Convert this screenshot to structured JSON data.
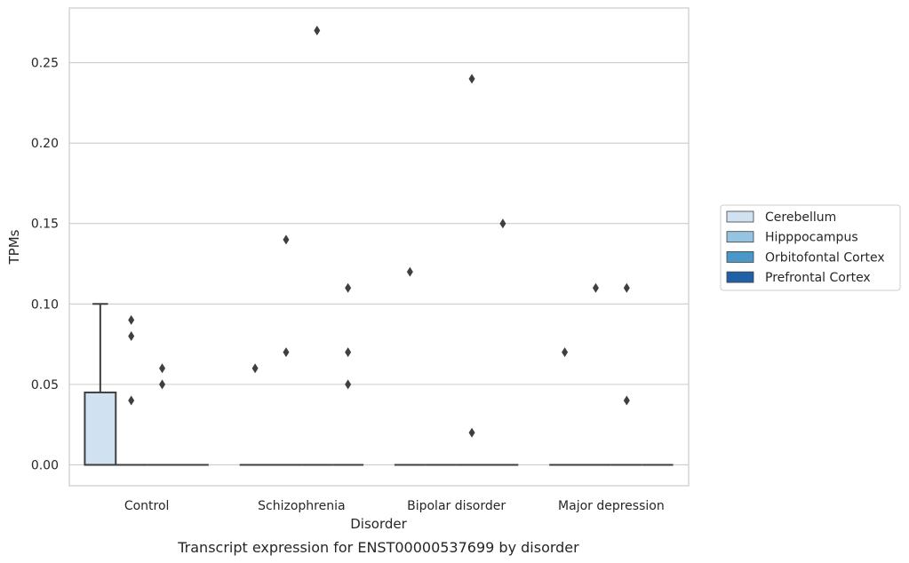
{
  "chart_data": {
    "type": "box",
    "caption": "Transcript expression for ENST00000537699 by disorder",
    "xlabel": "Disorder",
    "ylabel": "TPMs",
    "ylim": [
      -0.013,
      0.284
    ],
    "yticks": [
      0.0,
      0.05,
      0.1,
      0.15,
      0.2,
      0.25
    ],
    "ytick_labels": [
      "0.00",
      "0.05",
      "0.10",
      "0.15",
      "0.20",
      "0.25"
    ],
    "grid": "horizontal",
    "legend_placement": "right",
    "categories": [
      "Control",
      "Schizophrenia",
      "Bipolar disorder",
      "Major depression"
    ],
    "series": [
      {
        "name": "Cerebellum",
        "color": "#d0e1f2"
      },
      {
        "name": "Hipppocampus",
        "color": "#94c4df"
      },
      {
        "name": "Orbitofontal Cortex",
        "color": "#4a98c9"
      },
      {
        "name": "Prefrontal Cortex",
        "color": "#2060a7"
      }
    ],
    "boxes": [
      {
        "category": 0,
        "series": 0,
        "q1": 0.0,
        "median": 0.0,
        "q3": 0.045,
        "whisker_low": 0.0,
        "whisker_high": 0.1,
        "outliers": []
      },
      {
        "category": 0,
        "series": 1,
        "q1": 0.0,
        "median": 0.0,
        "q3": 0.0,
        "whisker_low": 0.0,
        "whisker_high": 0.0,
        "outliers": [
          0.04,
          0.08,
          0.09
        ]
      },
      {
        "category": 0,
        "series": 2,
        "q1": 0.0,
        "median": 0.0,
        "q3": 0.0,
        "whisker_low": 0.0,
        "whisker_high": 0.0,
        "outliers": [
          0.05,
          0.06
        ]
      },
      {
        "category": 0,
        "series": 3,
        "q1": 0.0,
        "median": 0.0,
        "q3": 0.0,
        "whisker_low": 0.0,
        "whisker_high": 0.0,
        "outliers": []
      },
      {
        "category": 1,
        "series": 0,
        "q1": 0.0,
        "median": 0.0,
        "q3": 0.0,
        "whisker_low": 0.0,
        "whisker_high": 0.0,
        "outliers": [
          0.06
        ]
      },
      {
        "category": 1,
        "series": 1,
        "q1": 0.0,
        "median": 0.0,
        "q3": 0.0,
        "whisker_low": 0.0,
        "whisker_high": 0.0,
        "outliers": [
          0.07,
          0.14
        ]
      },
      {
        "category": 1,
        "series": 2,
        "q1": 0.0,
        "median": 0.0,
        "q3": 0.0,
        "whisker_low": 0.0,
        "whisker_high": 0.0,
        "outliers": [
          0.27
        ]
      },
      {
        "category": 1,
        "series": 3,
        "q1": 0.0,
        "median": 0.0,
        "q3": 0.0,
        "whisker_low": 0.0,
        "whisker_high": 0.0,
        "outliers": [
          0.05,
          0.07,
          0.11
        ]
      },
      {
        "category": 2,
        "series": 0,
        "q1": 0.0,
        "median": 0.0,
        "q3": 0.0,
        "whisker_low": 0.0,
        "whisker_high": 0.0,
        "outliers": [
          0.12
        ]
      },
      {
        "category": 2,
        "series": 1,
        "q1": 0.0,
        "median": 0.0,
        "q3": 0.0,
        "whisker_low": 0.0,
        "whisker_high": 0.0,
        "outliers": []
      },
      {
        "category": 2,
        "series": 2,
        "q1": 0.0,
        "median": 0.0,
        "q3": 0.0,
        "whisker_low": 0.0,
        "whisker_high": 0.0,
        "outliers": [
          0.02,
          0.24
        ]
      },
      {
        "category": 2,
        "series": 3,
        "q1": 0.0,
        "median": 0.0,
        "q3": 0.0,
        "whisker_low": 0.0,
        "whisker_high": 0.0,
        "outliers": [
          0.15
        ]
      },
      {
        "category": 3,
        "series": 0,
        "q1": 0.0,
        "median": 0.0,
        "q3": 0.0,
        "whisker_low": 0.0,
        "whisker_high": 0.0,
        "outliers": [
          0.07
        ]
      },
      {
        "category": 3,
        "series": 1,
        "q1": 0.0,
        "median": 0.0,
        "q3": 0.0,
        "whisker_low": 0.0,
        "whisker_high": 0.0,
        "outliers": [
          0.11
        ]
      },
      {
        "category": 3,
        "series": 2,
        "q1": 0.0,
        "median": 0.0,
        "q3": 0.0,
        "whisker_low": 0.0,
        "whisker_high": 0.0,
        "outliers": [
          0.04,
          0.11
        ]
      },
      {
        "category": 3,
        "series": 3,
        "q1": 0.0,
        "median": 0.0,
        "q3": 0.0,
        "whisker_low": 0.0,
        "whisker_high": 0.0,
        "outliers": []
      }
    ]
  }
}
